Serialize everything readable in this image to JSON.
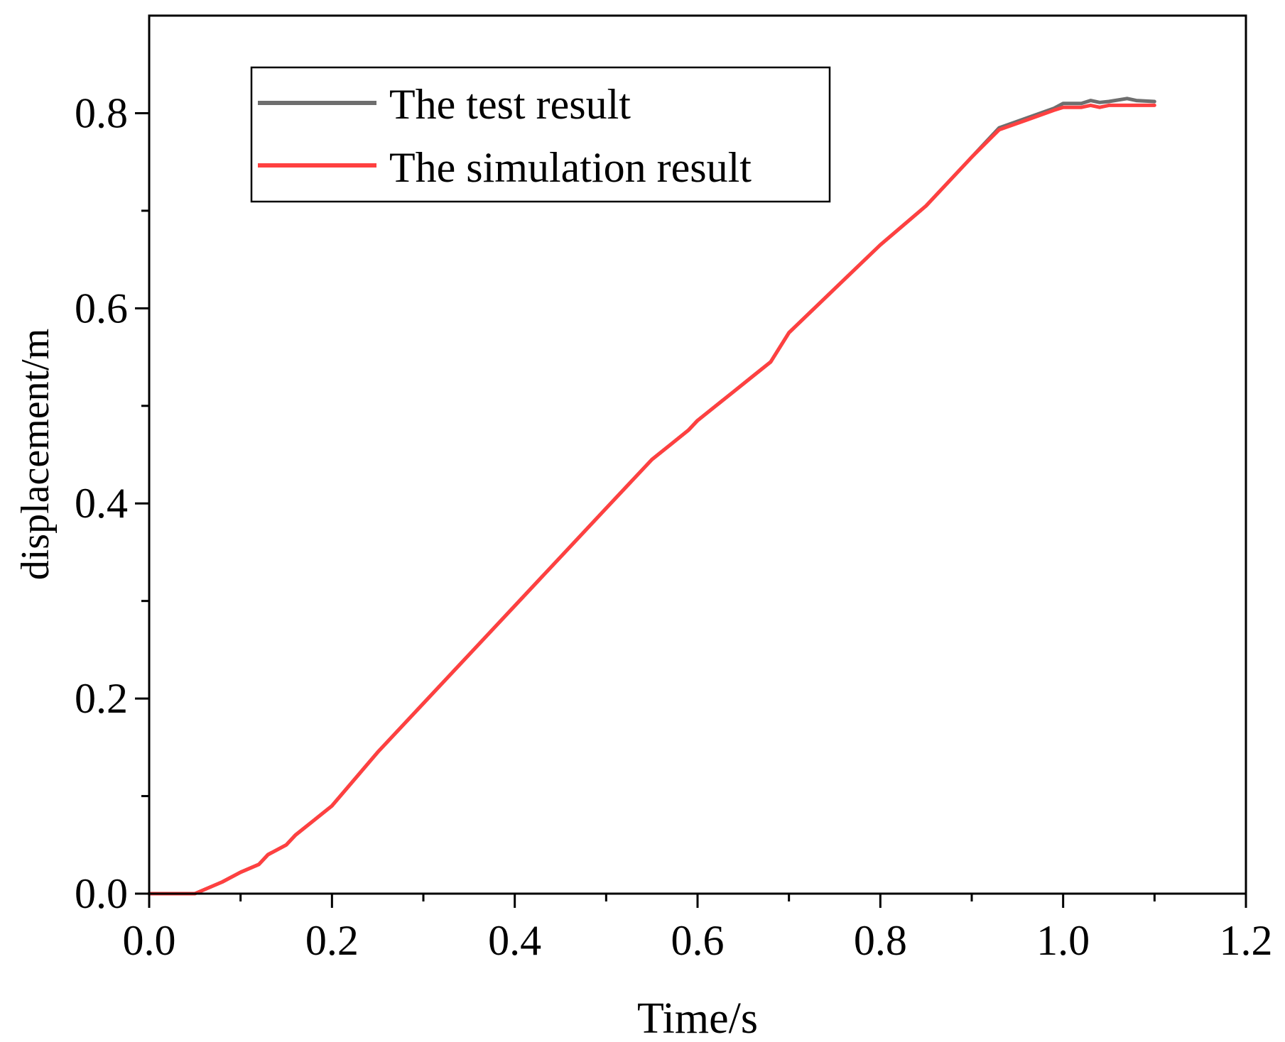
{
  "chart_data": {
    "type": "line",
    "title": "",
    "xlabel": "Time/s",
    "ylabel": "displacement/m",
    "xlim": [
      0.0,
      1.2
    ],
    "ylim": [
      0.0,
      0.9
    ],
    "xticks": [
      0.0,
      0.2,
      0.4,
      0.6,
      0.8,
      1.0,
      1.2
    ],
    "xtick_labels": [
      "0.0",
      "0.2",
      "0.4",
      "0.6",
      "0.8",
      "1.0",
      "1.2"
    ],
    "yticks": [
      0.0,
      0.2,
      0.4,
      0.6,
      0.8
    ],
    "ytick_labels": [
      "0.0",
      "0.2",
      "0.4",
      "0.6",
      "0.8"
    ],
    "x_minor_step": 0.1,
    "y_minor_step": 0.1,
    "grid": false,
    "legend_position": "top-left",
    "series": [
      {
        "name": "The test result",
        "color": "#6e6e6e",
        "x": [
          0.0,
          0.05,
          0.06,
          0.08,
          0.1,
          0.12,
          0.13,
          0.15,
          0.16,
          0.18,
          0.2,
          0.25,
          0.3,
          0.35,
          0.4,
          0.45,
          0.5,
          0.55,
          0.57,
          0.59,
          0.6,
          0.62,
          0.64,
          0.66,
          0.68,
          0.7,
          0.75,
          0.8,
          0.85,
          0.9,
          0.93,
          0.96,
          0.99,
          1.0,
          1.02,
          1.03,
          1.04,
          1.05,
          1.07,
          1.08,
          1.1
        ],
        "y": [
          0.0,
          0.0,
          0.004,
          0.012,
          0.022,
          0.03,
          0.04,
          0.05,
          0.06,
          0.075,
          0.09,
          0.145,
          0.195,
          0.245,
          0.295,
          0.345,
          0.395,
          0.445,
          0.46,
          0.475,
          0.485,
          0.5,
          0.515,
          0.53,
          0.545,
          0.575,
          0.62,
          0.665,
          0.705,
          0.755,
          0.785,
          0.795,
          0.805,
          0.81,
          0.81,
          0.813,
          0.811,
          0.812,
          0.815,
          0.813,
          0.812
        ]
      },
      {
        "name": "The simulation result",
        "color": "#ff4040",
        "x": [
          0.0,
          0.05,
          0.06,
          0.08,
          0.1,
          0.12,
          0.13,
          0.15,
          0.16,
          0.18,
          0.2,
          0.25,
          0.3,
          0.35,
          0.4,
          0.45,
          0.5,
          0.55,
          0.57,
          0.59,
          0.6,
          0.62,
          0.64,
          0.66,
          0.68,
          0.7,
          0.75,
          0.8,
          0.85,
          0.9,
          0.93,
          0.96,
          0.99,
          1.0,
          1.02,
          1.03,
          1.04,
          1.05,
          1.07,
          1.08,
          1.1
        ],
        "y": [
          0.0,
          0.0,
          0.004,
          0.012,
          0.022,
          0.03,
          0.04,
          0.05,
          0.06,
          0.075,
          0.09,
          0.145,
          0.195,
          0.245,
          0.295,
          0.345,
          0.395,
          0.445,
          0.46,
          0.475,
          0.485,
          0.5,
          0.515,
          0.53,
          0.545,
          0.575,
          0.62,
          0.665,
          0.705,
          0.755,
          0.783,
          0.793,
          0.803,
          0.806,
          0.806,
          0.808,
          0.806,
          0.808,
          0.808,
          0.808,
          0.808
        ]
      }
    ]
  }
}
